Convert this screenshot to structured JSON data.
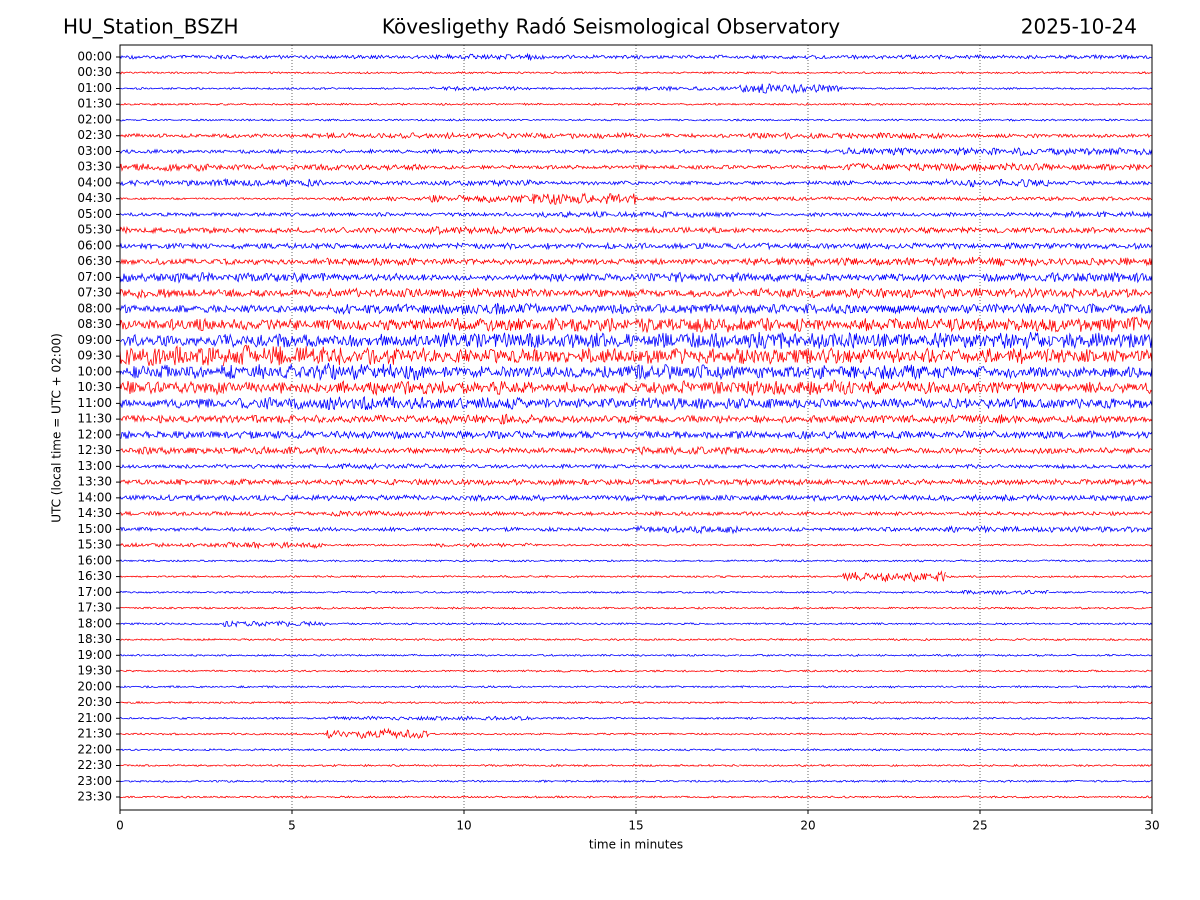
{
  "chart_data": {
    "type": "helicorder",
    "left_title": "HU_Station_BSZH",
    "title": "Kövesligethy Radó Seismological Observatory",
    "right_title": "2025-10-24",
    "xlabel": "time in minutes",
    "ylabel": "UTC (local time = UTC + 02:00)",
    "xlim": [
      0,
      30
    ],
    "xticks": [
      0,
      5,
      10,
      15,
      20,
      25,
      30
    ],
    "grid": "x",
    "colors": [
      "#0000ff",
      "#ff0000"
    ],
    "categories": [
      "00:00",
      "00:30",
      "01:00",
      "01:30",
      "02:00",
      "02:30",
      "03:00",
      "03:30",
      "04:00",
      "04:30",
      "05:00",
      "05:30",
      "06:00",
      "06:30",
      "07:00",
      "07:30",
      "08:00",
      "08:30",
      "09:00",
      "09:30",
      "10:00",
      "10:30",
      "11:00",
      "11:30",
      "12:00",
      "12:30",
      "13:00",
      "13:30",
      "14:00",
      "14:30",
      "15:00",
      "15:30",
      "16:00",
      "16:30",
      "17:00",
      "17:30",
      "18:00",
      "18:30",
      "19:00",
      "19:30",
      "20:00",
      "20:30",
      "21:00",
      "21:30",
      "22:00",
      "22:30",
      "23:00",
      "23:30"
    ],
    "values": [
      [
        2,
        2,
        2,
        3,
        2,
        2,
        2,
        2,
        2,
        2
      ],
      [
        1,
        1,
        1,
        1,
        1,
        1,
        1,
        1,
        1,
        1
      ],
      [
        1,
        1,
        1,
        2,
        1,
        2,
        5,
        1,
        1,
        1
      ],
      [
        1,
        1,
        1,
        1,
        1,
        1,
        1,
        1,
        1,
        1
      ],
      [
        1,
        1,
        1,
        1,
        1,
        1,
        1,
        1,
        1,
        1
      ],
      [
        2,
        2,
        3,
        3,
        3,
        2,
        3,
        3,
        2,
        2
      ],
      [
        2,
        2,
        2,
        2,
        2,
        2,
        2,
        4,
        4,
        4
      ],
      [
        4,
        3,
        3,
        2,
        2,
        2,
        2,
        4,
        4,
        3
      ],
      [
        3,
        4,
        2,
        3,
        2,
        2,
        2,
        2,
        4,
        2
      ],
      [
        1,
        1,
        2,
        4,
        6,
        2,
        2,
        2,
        2,
        2
      ],
      [
        2,
        2,
        2,
        2,
        3,
        3,
        2,
        2,
        2,
        3
      ],
      [
        3,
        3,
        3,
        4,
        3,
        3,
        2,
        3,
        3,
        3
      ],
      [
        3,
        3,
        3,
        3,
        3,
        3,
        3,
        3,
        3,
        3
      ],
      [
        3,
        3,
        4,
        3,
        3,
        3,
        4,
        4,
        5,
        4
      ],
      [
        5,
        5,
        4,
        3,
        4,
        5,
        4,
        4,
        4,
        5
      ],
      [
        5,
        4,
        5,
        5,
        4,
        4,
        5,
        5,
        5,
        5
      ],
      [
        4,
        4,
        5,
        6,
        5,
        5,
        5,
        5,
        5,
        5
      ],
      [
        6,
        6,
        6,
        7,
        7,
        8,
        7,
        7,
        7,
        8
      ],
      [
        6,
        7,
        7,
        8,
        8,
        8,
        9,
        8,
        9,
        8
      ],
      [
        10,
        11,
        9,
        7,
        8,
        8,
        8,
        8,
        8,
        7
      ],
      [
        7,
        8,
        9,
        6,
        6,
        8,
        7,
        8,
        6,
        6
      ],
      [
        7,
        6,
        7,
        7,
        6,
        7,
        8,
        7,
        6,
        6
      ],
      [
        5,
        6,
        7,
        6,
        5,
        6,
        5,
        5,
        6,
        5
      ],
      [
        4,
        4,
        4,
        5,
        4,
        4,
        4,
        4,
        5,
        4
      ],
      [
        4,
        4,
        4,
        4,
        4,
        4,
        4,
        4,
        4,
        4
      ],
      [
        4,
        4,
        3,
        3,
        3,
        4,
        3,
        3,
        3,
        3
      ],
      [
        2,
        2,
        3,
        2,
        2,
        2,
        2,
        2,
        2,
        2
      ],
      [
        3,
        3,
        3,
        3,
        3,
        3,
        3,
        3,
        3,
        3
      ],
      [
        3,
        3,
        3,
        3,
        3,
        3,
        3,
        3,
        3,
        3
      ],
      [
        2,
        2,
        3,
        2,
        2,
        2,
        2,
        2,
        2,
        2
      ],
      [
        2,
        2,
        2,
        2,
        2,
        4,
        2,
        2,
        3,
        3
      ],
      [
        2,
        3,
        1,
        2,
        1,
        1,
        1,
        1,
        1,
        1
      ],
      [
        1,
        1,
        1,
        1,
        1,
        1,
        1,
        1,
        1,
        1
      ],
      [
        1,
        1,
        1,
        1,
        1,
        1,
        1,
        5,
        1,
        1
      ],
      [
        1,
        1,
        1,
        1,
        1,
        1,
        1,
        1,
        2,
        1
      ],
      [
        1,
        1,
        1,
        1,
        1,
        1,
        1,
        1,
        1,
        1
      ],
      [
        1,
        3,
        1,
        1,
        1,
        1,
        1,
        1,
        1,
        1
      ],
      [
        1,
        1,
        1,
        1,
        1,
        1,
        1,
        1,
        1,
        1
      ],
      [
        1,
        1,
        1,
        1,
        1,
        1,
        1,
        1,
        1,
        1
      ],
      [
        1,
        1,
        1,
        1,
        1,
        1,
        1,
        1,
        1,
        1
      ],
      [
        1,
        1,
        1,
        1,
        1,
        1,
        1,
        1,
        1,
        1
      ],
      [
        1,
        1,
        1,
        1,
        1,
        1,
        1,
        1,
        1,
        1
      ],
      [
        1,
        1,
        2,
        2,
        1,
        1,
        1,
        1,
        1,
        1
      ],
      [
        1,
        1,
        5,
        1,
        1,
        1,
        1,
        1,
        1,
        1
      ],
      [
        1,
        1,
        1,
        1,
        1,
        1,
        1,
        1,
        1,
        1
      ],
      [
        1,
        1,
        1,
        1,
        1,
        1,
        1,
        1,
        1,
        1
      ],
      [
        1,
        1,
        1,
        1,
        1,
        1,
        1,
        1,
        1,
        1
      ],
      [
        1,
        1,
        1,
        1,
        1,
        1,
        1,
        1,
        1,
        1
      ]
    ]
  }
}
